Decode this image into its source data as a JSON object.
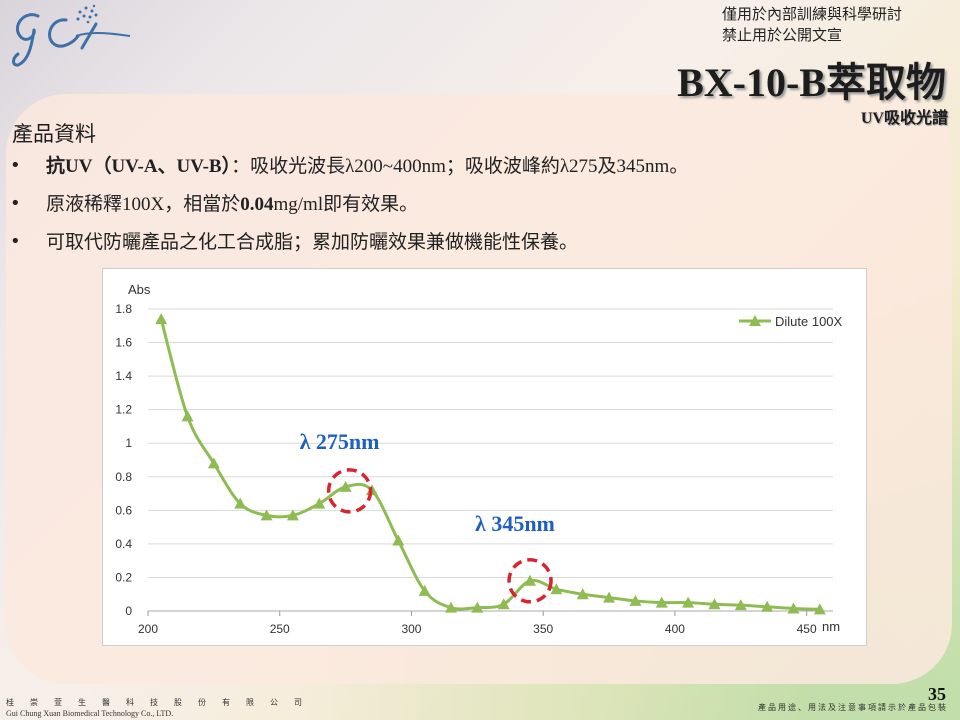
{
  "header": {
    "notice_line1": "僅用於內部訓練與科學研討",
    "notice_line2": "禁止用於公開文宣",
    "title": "BX-10-B萃取物",
    "subtitle": "UV吸收光譜"
  },
  "section_title": "產品資料",
  "bullets": [
    {
      "a": "抗",
      "b": "UV（UV-A、UV-B）",
      "c": "：吸收光波長λ200~400nm；吸收波峰約λ275及345nm。"
    },
    {
      "a": "原液稀釋100X，相當於",
      "b": "0.04",
      "c": "mg/ml即有效果。"
    },
    {
      "a": "可取代防曬產品之化工合成脂；累加防曬效果兼做機能性保養。",
      "b": "",
      "c": ""
    }
  ],
  "bullet_symbol": "•",
  "chart_data": {
    "type": "line",
    "ylabel": "Abs",
    "xlabel": "nm",
    "xlim": [
      200,
      460
    ],
    "ylim": [
      0,
      1.8
    ],
    "xticks": [
      200,
      250,
      300,
      350,
      400,
      450
    ],
    "yticks": [
      0,
      0.2,
      0.4,
      0.6,
      0.8,
      1,
      1.2,
      1.4,
      1.6,
      1.8
    ],
    "grid": true,
    "legend_position": "top-right",
    "series": [
      {
        "name": "Dilute 100X",
        "color": "#8fbc52",
        "marker": "triangle",
        "x": [
          205,
          215,
          225,
          235,
          245,
          255,
          265,
          275,
          285,
          295,
          305,
          315,
          325,
          335,
          345,
          355,
          365,
          375,
          385,
          395,
          405,
          415,
          425,
          435,
          445,
          455
        ],
        "y": [
          1.74,
          1.16,
          0.88,
          0.64,
          0.57,
          0.57,
          0.64,
          0.74,
          0.72,
          0.42,
          0.12,
          0.02,
          0.02,
          0.04,
          0.18,
          0.13,
          0.1,
          0.08,
          0.06,
          0.05,
          0.05,
          0.04,
          0.035,
          0.025,
          0.015,
          0.01
        ]
      }
    ],
    "annotations": [
      {
        "text": "λ 275nm",
        "x": 275,
        "y": 0.74,
        "color": "#1f5fbf"
      },
      {
        "text": "λ 345nm",
        "x": 345,
        "y": 0.18,
        "color": "#1f5fbf"
      }
    ],
    "highlight_color": "#d9232e"
  },
  "footer": {
    "company_cn": "桂 崇 萱 生 醫 科 技 股 份 有 限 公 司",
    "company_en": "Gui Chung Xuan Biomedical Technology Co., LTD.",
    "disclaimer": "產品用途、用法及注意事項請示於產品包裝",
    "page_number": "35"
  }
}
